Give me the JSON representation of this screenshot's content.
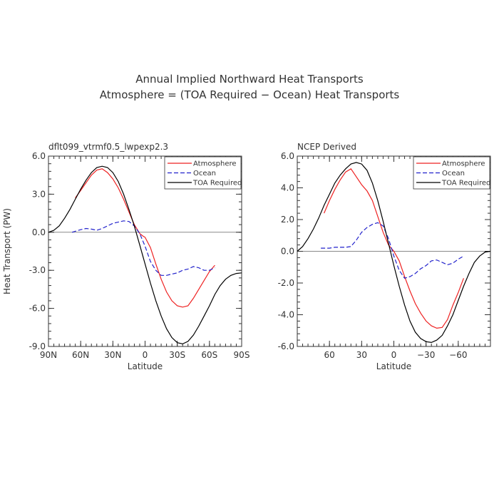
{
  "title": "Annual Implied Northward Heat Transports",
  "subtitle": "Atmosphere = (TOA Required − Ocean) Heat Transports",
  "chart_data": [
    {
      "type": "line",
      "panel_label": "dflt099_vtrmf0.5_lwpexp2.3",
      "xlabel": "Latitude",
      "ylabel": "Heat Transport (PW)",
      "xlim": [
        90,
        -90
      ],
      "ylim": [
        -9,
        6
      ],
      "xticks": [
        90,
        60,
        30,
        0,
        -30,
        -60,
        -90
      ],
      "xtick_labels": [
        "90N",
        "60N",
        "30N",
        "0",
        "30S",
        "60S",
        "90S"
      ],
      "yticks": [
        6,
        3,
        0,
        -3,
        -6,
        -9
      ],
      "ytick_labels": [
        "6.0",
        "3.0",
        "0.0",
        "-3.0",
        "-6.0",
        "-9.0"
      ],
      "zero_line": true,
      "legend_position": "top-right",
      "series": [
        {
          "name": "Atmosphere",
          "color": "#ee2222",
          "dash": "solid",
          "x": [
            65,
            60,
            55,
            50,
            45,
            40,
            35,
            30,
            25,
            20,
            15,
            10,
            5,
            2,
            0,
            -5,
            -10,
            -15,
            -20,
            -25,
            -30,
            -35,
            -40,
            -45,
            -50,
            -55,
            -60,
            -65
          ],
          "y": [
            2.7,
            3.3,
            3.9,
            4.5,
            4.9,
            5.0,
            4.7,
            4.2,
            3.5,
            2.6,
            1.6,
            0.6,
            -0.1,
            -0.3,
            -0.4,
            -1.2,
            -2.5,
            -3.7,
            -4.7,
            -5.4,
            -5.8,
            -5.9,
            -5.8,
            -5.2,
            -4.5,
            -3.8,
            -3.1,
            -2.6
          ]
        },
        {
          "name": "Ocean",
          "color": "#2222cc",
          "dash": "dashed",
          "x": [
            68,
            60,
            55,
            50,
            45,
            40,
            35,
            30,
            25,
            20,
            15,
            10,
            5,
            0,
            -5,
            -10,
            -15,
            -20,
            -25,
            -30,
            -35,
            -40,
            -45,
            -50,
            -55,
            -60,
            -65
          ],
          "y": [
            0.0,
            0.2,
            0.3,
            0.25,
            0.15,
            0.3,
            0.5,
            0.7,
            0.8,
            0.9,
            0.85,
            0.5,
            -0.1,
            -1.1,
            -2.3,
            -3.0,
            -3.4,
            -3.4,
            -3.3,
            -3.2,
            -3.0,
            -2.9,
            -2.7,
            -2.8,
            -3.0,
            -3.0,
            -2.8
          ]
        },
        {
          "name": "TOA Required",
          "color": "#000000",
          "dash": "solid",
          "x": [
            90,
            85,
            80,
            75,
            70,
            65,
            60,
            55,
            50,
            45,
            40,
            35,
            30,
            25,
            20,
            15,
            10,
            5,
            0,
            -5,
            -10,
            -15,
            -20,
            -25,
            -30,
            -35,
            -40,
            -45,
            -50,
            -55,
            -60,
            -65,
            -70,
            -75,
            -80,
            -85,
            -90
          ],
          "y": [
            0.0,
            0.15,
            0.5,
            1.1,
            1.8,
            2.6,
            3.4,
            4.1,
            4.7,
            5.1,
            5.2,
            5.1,
            4.7,
            4.0,
            3.0,
            1.8,
            0.5,
            -1.0,
            -2.5,
            -4.0,
            -5.4,
            -6.6,
            -7.6,
            -8.3,
            -8.7,
            -8.8,
            -8.6,
            -8.1,
            -7.4,
            -6.6,
            -5.8,
            -4.9,
            -4.2,
            -3.7,
            -3.4,
            -3.25,
            -3.2
          ]
        }
      ]
    },
    {
      "type": "line",
      "panel_label": "NCEP Derived",
      "xlabel": "Latitude",
      "ylabel": "",
      "xlim": [
        90,
        -90
      ],
      "ylim": [
        -6,
        6
      ],
      "xticks": [
        60,
        30,
        0,
        -30,
        -60
      ],
      "xtick_labels": [
        "60",
        "30",
        "0",
        "−30",
        "−60"
      ],
      "yticks": [
        6,
        4,
        2,
        0,
        -2,
        -4,
        -6
      ],
      "ytick_labels": [
        "6.0",
        "4.0",
        "2.0",
        "0.0",
        "-2.0",
        "-4.0",
        "-6.0"
      ],
      "zero_line": true,
      "legend_position": "top-right",
      "series": [
        {
          "name": "Atmosphere",
          "color": "#ee2222",
          "dash": "solid",
          "x": [
            65,
            60,
            55,
            50,
            45,
            40,
            35,
            30,
            25,
            20,
            15,
            10,
            5,
            0,
            -5,
            -10,
            -15,
            -20,
            -25,
            -30,
            -35,
            -40,
            -45,
            -50,
            -55,
            -60,
            -65
          ],
          "y": [
            2.4,
            3.2,
            3.9,
            4.5,
            5.0,
            5.2,
            4.7,
            4.2,
            3.8,
            3.2,
            2.2,
            1.2,
            0.4,
            0.0,
            -0.6,
            -1.6,
            -2.5,
            -3.3,
            -3.9,
            -4.4,
            -4.7,
            -4.85,
            -4.8,
            -4.3,
            -3.4,
            -2.6,
            -1.7
          ]
        },
        {
          "name": "Ocean",
          "color": "#2222cc",
          "dash": "dashed",
          "x": [
            68,
            60,
            55,
            50,
            45,
            40,
            35,
            30,
            25,
            20,
            15,
            10,
            5,
            0,
            -5,
            -10,
            -15,
            -20,
            -25,
            -30,
            -35,
            -40,
            -45,
            -50,
            -55,
            -60,
            -65
          ],
          "y": [
            0.2,
            0.2,
            0.25,
            0.25,
            0.25,
            0.3,
            0.7,
            1.2,
            1.5,
            1.7,
            1.8,
            1.6,
            0.8,
            -0.3,
            -1.2,
            -1.7,
            -1.6,
            -1.4,
            -1.1,
            -0.9,
            -0.6,
            -0.55,
            -0.7,
            -0.85,
            -0.75,
            -0.5,
            -0.3
          ]
        },
        {
          "name": "TOA Required",
          "color": "#000000",
          "dash": "solid",
          "x": [
            90,
            85,
            80,
            75,
            70,
            65,
            60,
            55,
            50,
            45,
            40,
            35,
            30,
            25,
            20,
            15,
            10,
            5,
            0,
            -5,
            -10,
            -15,
            -20,
            -25,
            -30,
            -35,
            -40,
            -45,
            -50,
            -55,
            -60,
            -65,
            -70,
            -75,
            -80,
            -85,
            -90
          ],
          "y": [
            0.0,
            0.3,
            0.8,
            1.4,
            2.1,
            2.9,
            3.6,
            4.3,
            4.8,
            5.2,
            5.5,
            5.6,
            5.5,
            5.1,
            4.3,
            3.2,
            1.9,
            0.5,
            -0.9,
            -2.2,
            -3.4,
            -4.4,
            -5.1,
            -5.5,
            -5.7,
            -5.75,
            -5.6,
            -5.3,
            -4.7,
            -4.0,
            -3.1,
            -2.2,
            -1.4,
            -0.7,
            -0.3,
            -0.05,
            0.0
          ]
        }
      ]
    }
  ]
}
